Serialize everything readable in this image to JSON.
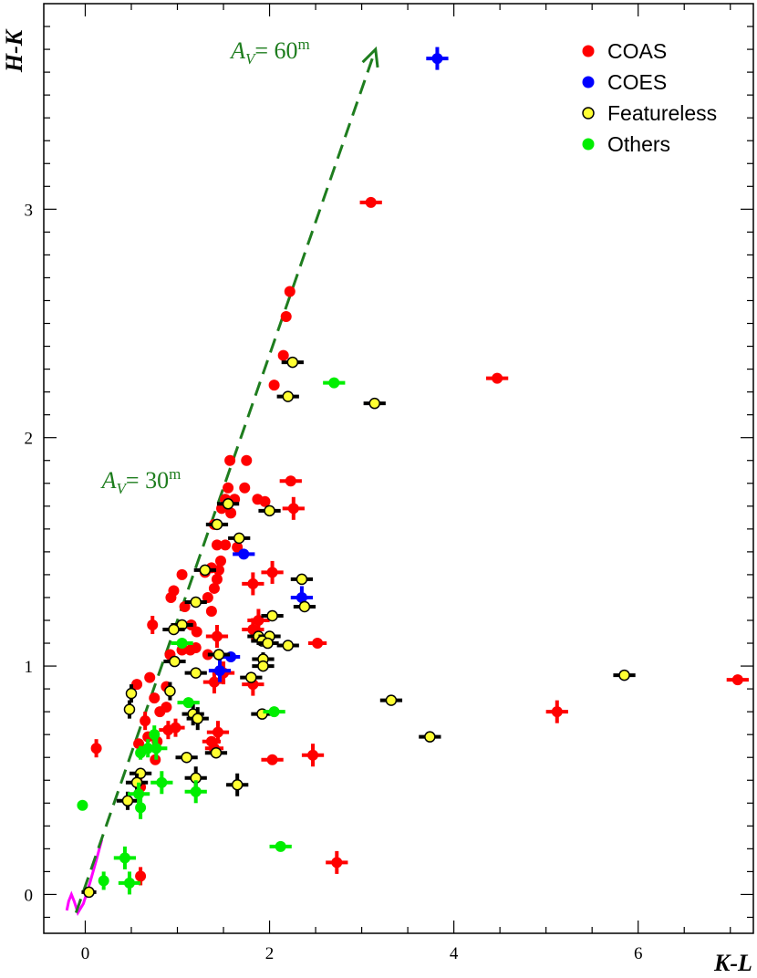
{
  "chart_data": {
    "type": "scatter",
    "xlabel": "K-L",
    "ylabel": "H-K",
    "xlim": [
      -0.45,
      7.25
    ],
    "ylim": [
      -0.17,
      3.9
    ],
    "x_ticks": [
      0,
      2,
      4,
      6
    ],
    "y_ticks": [
      0,
      1,
      2,
      3
    ],
    "legend_position": "top-right",
    "grid": false,
    "colors": {
      "coas": "#ff0000",
      "coes": "#0000ff",
      "featureless_fill": "#ffff33",
      "featureless_edge": "#000000",
      "others": "#00ee00",
      "reddening": "#1e7d1e",
      "locus": "#ff00ff"
    },
    "legend": [
      {
        "key": "coas",
        "label": "COAS"
      },
      {
        "key": "coes",
        "label": "COES"
      },
      {
        "key": "featureless",
        "label": "Featureless"
      },
      {
        "key": "others",
        "label": "Others"
      }
    ],
    "annotations": {
      "av60": {
        "prefix": "A",
        "sub": "V",
        "value": "= 60",
        "sup": "m",
        "x": 1.58,
        "y": 3.66
      },
      "av30": {
        "prefix": "A",
        "sub": "V",
        "value": "= 30",
        "sup": "m",
        "x": 0.18,
        "y": 1.78
      }
    },
    "reddening_vector": {
      "x": [
        -0.1,
        3.15
      ],
      "y": [
        -0.08,
        3.7
      ]
    },
    "intrinsic_locus": {
      "x": [
        -0.2,
        -0.18,
        -0.15,
        -0.12,
        -0.08,
        -0.02,
        0.05,
        0.12,
        0.18
      ],
      "y": [
        -0.07,
        -0.03,
        0.0,
        -0.03,
        -0.08,
        -0.04,
        0.05,
        0.15,
        0.24
      ]
    },
    "series": [
      {
        "key": "coas",
        "name": "COAS",
        "points": [
          [
            3.1,
            3.03,
            0.12,
            0
          ],
          [
            2.22,
            2.64,
            0,
            0
          ],
          [
            2.18,
            2.53,
            0,
            0
          ],
          [
            2.15,
            2.36,
            0,
            0
          ],
          [
            2.05,
            2.23,
            0,
            0
          ],
          [
            4.47,
            2.26,
            0.12,
            0
          ],
          [
            2.23,
            1.81,
            0.12,
            0
          ],
          [
            1.57,
            1.9,
            0,
            0
          ],
          [
            1.75,
            1.9,
            0,
            0
          ],
          [
            1.55,
            1.78,
            0,
            0
          ],
          [
            1.73,
            1.78,
            0,
            0
          ],
          [
            1.52,
            1.73,
            0,
            0
          ],
          [
            1.62,
            1.73,
            0,
            0
          ],
          [
            1.87,
            1.73,
            0,
            0
          ],
          [
            1.95,
            1.72,
            0,
            0
          ],
          [
            1.48,
            1.69,
            0,
            0
          ],
          [
            1.58,
            1.67,
            0,
            0
          ],
          [
            2.26,
            1.69,
            0.12,
            0.05
          ],
          [
            1.4,
            1.62,
            0,
            0
          ],
          [
            1.43,
            1.53,
            0,
            0
          ],
          [
            1.52,
            1.53,
            0,
            0
          ],
          [
            1.65,
            1.52,
            0,
            0
          ],
          [
            1.47,
            1.46,
            0,
            0
          ],
          [
            1.37,
            1.43,
            0,
            0
          ],
          [
            1.45,
            1.42,
            0,
            0
          ],
          [
            1.3,
            1.41,
            0,
            0
          ],
          [
            1.05,
            1.4,
            0,
            0
          ],
          [
            2.03,
            1.41,
            0.12,
            0.05
          ],
          [
            1.43,
            1.38,
            0,
            0
          ],
          [
            1.4,
            1.34,
            0,
            0
          ],
          [
            1.82,
            1.36,
            0.12,
            0.05
          ],
          [
            0.93,
            1.3,
            0,
            0
          ],
          [
            0.96,
            1.33,
            0,
            0
          ],
          [
            1.33,
            1.3,
            0,
            0
          ],
          [
            1.08,
            1.26,
            0,
            0
          ],
          [
            1.37,
            1.24,
            0,
            0
          ],
          [
            0.73,
            1.18,
            0,
            0.04
          ],
          [
            1.15,
            1.18,
            0,
            0
          ],
          [
            1.21,
            1.15,
            0,
            0
          ],
          [
            1.88,
            1.2,
            0.12,
            0.05
          ],
          [
            1.82,
            1.16,
            0.12,
            0.05
          ],
          [
            1.43,
            1.13,
            0.12,
            0.05
          ],
          [
            0.92,
            1.05,
            0,
            0
          ],
          [
            1.05,
            1.07,
            0,
            0
          ],
          [
            1.14,
            1.07,
            0,
            0
          ],
          [
            1.2,
            1.08,
            0,
            0
          ],
          [
            1.33,
            1.05,
            0,
            0
          ],
          [
            2.52,
            1.1,
            0.1,
            0
          ],
          [
            1.5,
            0.97,
            0.12,
            0.05
          ],
          [
            1.4,
            0.93,
            0.12,
            0.05
          ],
          [
            1.82,
            0.92,
            0.12,
            0.05
          ],
          [
            0.7,
            0.95,
            0,
            0
          ],
          [
            0.88,
            0.91,
            0,
            0
          ],
          [
            0.56,
            0.92,
            0,
            0
          ],
          [
            0.75,
            0.86,
            0,
            0
          ],
          [
            0.81,
            0.8,
            0,
            0
          ],
          [
            0.88,
            0.82,
            0,
            0
          ],
          [
            0.65,
            0.76,
            0,
            0.04
          ],
          [
            0.98,
            0.73,
            0.1,
            0.04
          ],
          [
            0.9,
            0.72,
            0.1,
            0.04
          ],
          [
            0.78,
            0.67,
            0,
            0
          ],
          [
            0.68,
            0.69,
            0,
            0
          ],
          [
            0.58,
            0.66,
            0,
            0
          ],
          [
            0.12,
            0.64,
            0,
            0.04
          ],
          [
            0.76,
            0.59,
            0,
            0
          ],
          [
            1.44,
            0.71,
            0.12,
            0.05
          ],
          [
            1.37,
            0.67,
            0.1,
            0
          ],
          [
            1.4,
            0.64,
            0.1,
            0
          ],
          [
            2.03,
            0.59,
            0.12,
            0
          ],
          [
            2.47,
            0.61,
            0.12,
            0.05
          ],
          [
            5.12,
            0.8,
            0.12,
            0.05
          ],
          [
            7.08,
            0.94,
            0.12,
            0
          ],
          [
            0.6,
            0.47,
            0,
            0.04
          ],
          [
            0.6,
            0.08,
            0,
            0.04
          ],
          [
            2.73,
            0.14,
            0.12,
            0.05
          ]
        ]
      },
      {
        "key": "coes",
        "name": "COES",
        "points": [
          [
            3.82,
            3.66,
            0.12,
            0.05
          ],
          [
            1.72,
            1.49,
            0.12,
            0
          ],
          [
            2.35,
            1.3,
            0.12,
            0.05
          ],
          [
            1.46,
            0.98,
            0.12,
            0.05
          ],
          [
            1.58,
            1.04,
            0.1,
            0
          ]
        ]
      },
      {
        "key": "featureless",
        "name": "Featureless",
        "points": [
          [
            2.25,
            2.33,
            0.12,
            0
          ],
          [
            2.2,
            2.18,
            0.12,
            0
          ],
          [
            3.14,
            2.15,
            0.12,
            0
          ],
          [
            2.0,
            1.68,
            0.12,
            0
          ],
          [
            1.55,
            1.71,
            0.12,
            0
          ],
          [
            1.43,
            1.62,
            0.12,
            0
          ],
          [
            1.67,
            1.56,
            0.12,
            0
          ],
          [
            1.3,
            1.42,
            0.12,
            0
          ],
          [
            2.35,
            1.38,
            0.12,
            0
          ],
          [
            1.2,
            1.28,
            0.12,
            0
          ],
          [
            2.38,
            1.26,
            0.12,
            0
          ],
          [
            1.05,
            1.18,
            0.12,
            0
          ],
          [
            0.96,
            1.16,
            0.12,
            0
          ],
          [
            2.03,
            1.22,
            0.12,
            0
          ],
          [
            1.88,
            1.13,
            0.12,
            0
          ],
          [
            2.0,
            1.13,
            0.12,
            0
          ],
          [
            1.92,
            1.11,
            0.12,
            0
          ],
          [
            1.98,
            1.1,
            0.12,
            0
          ],
          [
            2.2,
            1.09,
            0.12,
            0
          ],
          [
            1.45,
            1.05,
            0.12,
            0
          ],
          [
            1.93,
            1.03,
            0.12,
            0.03
          ],
          [
            0.97,
            1.02,
            0.12,
            0
          ],
          [
            1.93,
            1.0,
            0.12,
            0
          ],
          [
            1.2,
            0.97,
            0.12,
            0
          ],
          [
            1.8,
            0.95,
            0.12,
            0
          ],
          [
            0.5,
            0.88,
            0,
            0.04
          ],
          [
            0.92,
            0.89,
            0,
            0.04
          ],
          [
            0.48,
            0.81,
            0,
            0.04
          ],
          [
            1.17,
            0.79,
            0.12,
            0.05
          ],
          [
            1.22,
            0.77,
            0.12,
            0.05
          ],
          [
            3.32,
            0.85,
            0.12,
            0
          ],
          [
            1.92,
            0.79,
            0.12,
            0
          ],
          [
            5.85,
            0.96,
            0.12,
            0
          ],
          [
            3.74,
            0.69,
            0.12,
            0
          ],
          [
            1.1,
            0.6,
            0.12,
            0
          ],
          [
            1.42,
            0.62,
            0.12,
            0
          ],
          [
            0.6,
            0.53,
            0.12,
            0
          ],
          [
            1.2,
            0.51,
            0.12,
            0.05
          ],
          [
            0.56,
            0.49,
            0.12,
            0.04
          ],
          [
            1.65,
            0.48,
            0.12,
            0.05
          ],
          [
            0.46,
            0.41,
            0.12,
            0.04
          ],
          [
            0.04,
            0.01,
            0.08,
            0
          ]
        ]
      },
      {
        "key": "others",
        "name": "Others",
        "points": [
          [
            2.7,
            2.24,
            0.12,
            0
          ],
          [
            1.05,
            1.1,
            0.12,
            0
          ],
          [
            1.12,
            0.84,
            0.12,
            0
          ],
          [
            2.05,
            0.8,
            0.12,
            0
          ],
          [
            0.75,
            0.7,
            0,
            0.04
          ],
          [
            0.68,
            0.64,
            0.1,
            0.04
          ],
          [
            0.77,
            0.64,
            0.12,
            0.05
          ],
          [
            0.6,
            0.62,
            0,
            0.03
          ],
          [
            0.83,
            0.49,
            0.12,
            0.05
          ],
          [
            1.2,
            0.45,
            0.12,
            0.05
          ],
          [
            0.58,
            0.44,
            0.12,
            0.05
          ],
          [
            0.6,
            0.38,
            0,
            0.05
          ],
          [
            -0.03,
            0.39,
            0,
            0
          ],
          [
            2.12,
            0.21,
            0.12,
            0
          ],
          [
            0.43,
            0.16,
            0.12,
            0.05
          ],
          [
            0.2,
            0.06,
            0,
            0.04
          ],
          [
            0.48,
            0.05,
            0.12,
            0.05
          ]
        ]
      }
    ]
  }
}
